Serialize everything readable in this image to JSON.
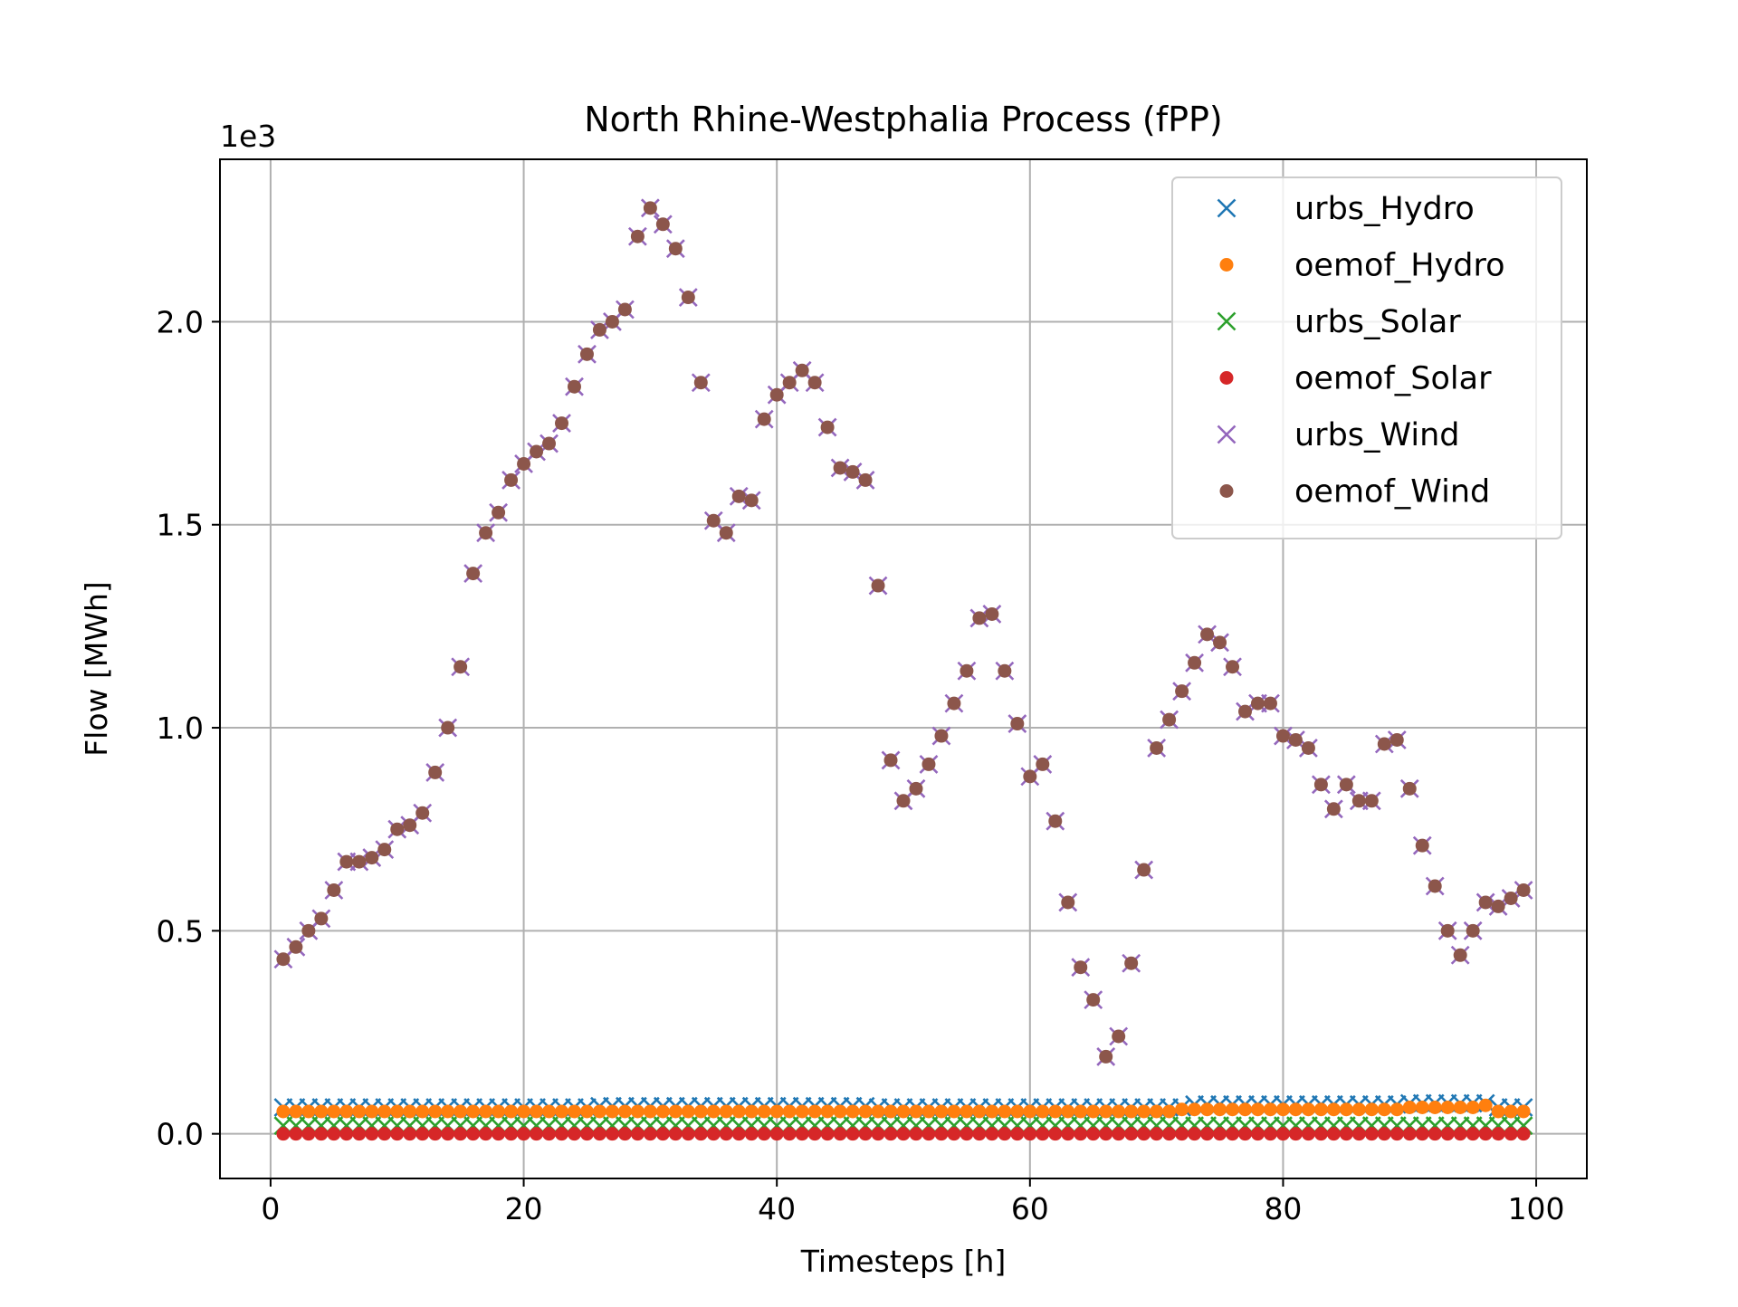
{
  "chart_data": {
    "type": "scatter",
    "title": "North Rhine-Westphalia Process (fPP)",
    "xlabel": "Timesteps [h]",
    "ylabel": "Flow [MWh]",
    "y_offset_label": "1e3",
    "xlim": [
      -4,
      104
    ],
    "ylim": [
      -0.11,
      2.4
    ],
    "x_ticks": [
      0,
      20,
      40,
      60,
      80,
      100
    ],
    "x_tick_labels": [
      "0",
      "20",
      "40",
      "60",
      "80",
      "100"
    ],
    "y_ticks": [
      0.0,
      0.5,
      1.0,
      1.5,
      2.0
    ],
    "y_tick_labels": [
      "0.0",
      "0.5",
      "1.0",
      "1.5",
      "2.0"
    ],
    "y_scale_note": "values in units of 1e3 MWh",
    "grid": true,
    "legend_position": "upper right",
    "x": [
      1,
      2,
      3,
      4,
      5,
      6,
      7,
      8,
      9,
      10,
      11,
      12,
      13,
      14,
      15,
      16,
      17,
      18,
      19,
      20,
      21,
      22,
      23,
      24,
      25,
      26,
      27,
      28,
      29,
      30,
      31,
      32,
      33,
      34,
      35,
      36,
      37,
      38,
      39,
      40,
      41,
      42,
      43,
      44,
      45,
      46,
      47,
      48,
      49,
      50,
      51,
      52,
      53,
      54,
      55,
      56,
      57,
      58,
      59,
      60,
      61,
      62,
      63,
      64,
      65,
      66,
      67,
      68,
      69,
      70,
      71,
      72,
      73,
      74,
      75,
      76,
      77,
      78,
      79,
      80,
      81,
      82,
      83,
      84,
      85,
      86,
      87,
      88,
      89,
      90,
      91,
      92,
      93,
      94,
      95,
      96,
      97,
      98,
      99
    ],
    "series": [
      {
        "name": "urbs_Hydro",
        "marker": "x",
        "color": "#1f77b4",
        "values": [
          0.065,
          0.065,
          0.065,
          0.065,
          0.065,
          0.065,
          0.065,
          0.065,
          0.065,
          0.065,
          0.065,
          0.065,
          0.065,
          0.065,
          0.065,
          0.065,
          0.065,
          0.065,
          0.065,
          0.065,
          0.065,
          0.065,
          0.065,
          0.065,
          0.065,
          0.068,
          0.068,
          0.068,
          0.068,
          0.068,
          0.068,
          0.068,
          0.068,
          0.068,
          0.068,
          0.068,
          0.068,
          0.068,
          0.068,
          0.068,
          0.068,
          0.068,
          0.068,
          0.068,
          0.068,
          0.068,
          0.068,
          0.065,
          0.065,
          0.065,
          0.065,
          0.065,
          0.065,
          0.065,
          0.065,
          0.065,
          0.065,
          0.065,
          0.065,
          0.065,
          0.065,
          0.065,
          0.065,
          0.065,
          0.065,
          0.065,
          0.065,
          0.065,
          0.065,
          0.065,
          0.065,
          0.065,
          0.072,
          0.072,
          0.072,
          0.072,
          0.072,
          0.072,
          0.072,
          0.072,
          0.072,
          0.072,
          0.072,
          0.072,
          0.072,
          0.072,
          0.072,
          0.072,
          0.072,
          0.075,
          0.075,
          0.075,
          0.075,
          0.075,
          0.075,
          0.075,
          0.065,
          0.065,
          0.065
        ]
      },
      {
        "name": "oemof_Hydro",
        "marker": "o",
        "color": "#ff7f0e",
        "values": [
          0.055,
          0.055,
          0.055,
          0.055,
          0.055,
          0.055,
          0.055,
          0.055,
          0.055,
          0.055,
          0.055,
          0.055,
          0.055,
          0.055,
          0.055,
          0.055,
          0.055,
          0.055,
          0.055,
          0.055,
          0.055,
          0.055,
          0.055,
          0.055,
          0.055,
          0.055,
          0.055,
          0.055,
          0.055,
          0.055,
          0.055,
          0.055,
          0.055,
          0.055,
          0.055,
          0.055,
          0.055,
          0.055,
          0.055,
          0.055,
          0.055,
          0.055,
          0.055,
          0.055,
          0.055,
          0.055,
          0.055,
          0.055,
          0.055,
          0.055,
          0.055,
          0.055,
          0.055,
          0.055,
          0.055,
          0.055,
          0.055,
          0.055,
          0.055,
          0.055,
          0.055,
          0.055,
          0.055,
          0.055,
          0.055,
          0.055,
          0.055,
          0.055,
          0.055,
          0.055,
          0.055,
          0.06,
          0.06,
          0.06,
          0.06,
          0.06,
          0.06,
          0.06,
          0.06,
          0.06,
          0.06,
          0.06,
          0.06,
          0.06,
          0.06,
          0.06,
          0.06,
          0.06,
          0.06,
          0.065,
          0.065,
          0.065,
          0.065,
          0.065,
          0.065,
          0.07,
          0.055,
          0.055,
          0.055
        ]
      },
      {
        "name": "urbs_Solar",
        "marker": "x",
        "color": "#2ca02c",
        "values": [
          0.02,
          0.02,
          0.02,
          0.02,
          0.02,
          0.02,
          0.02,
          0.02,
          0.02,
          0.02,
          0.02,
          0.02,
          0.02,
          0.02,
          0.02,
          0.02,
          0.02,
          0.02,
          0.02,
          0.02,
          0.02,
          0.02,
          0.02,
          0.02,
          0.02,
          0.02,
          0.02,
          0.02,
          0.02,
          0.02,
          0.02,
          0.02,
          0.02,
          0.02,
          0.02,
          0.02,
          0.02,
          0.02,
          0.02,
          0.02,
          0.02,
          0.02,
          0.02,
          0.02,
          0.02,
          0.02,
          0.02,
          0.02,
          0.02,
          0.02,
          0.02,
          0.02,
          0.02,
          0.02,
          0.02,
          0.02,
          0.02,
          0.02,
          0.02,
          0.02,
          0.02,
          0.02,
          0.02,
          0.02,
          0.02,
          0.02,
          0.02,
          0.02,
          0.02,
          0.02,
          0.02,
          0.02,
          0.02,
          0.02,
          0.02,
          0.02,
          0.02,
          0.02,
          0.02,
          0.02,
          0.02,
          0.02,
          0.02,
          0.02,
          0.02,
          0.02,
          0.02,
          0.02,
          0.02,
          0.02,
          0.02,
          0.02,
          0.02,
          0.02,
          0.02,
          0.02,
          0.02,
          0.02,
          0.02
        ]
      },
      {
        "name": "oemof_Solar",
        "marker": "o",
        "color": "#d62728",
        "values": [
          0.0,
          0.0,
          0.0,
          0.0,
          0.0,
          0.0,
          0.0,
          0.0,
          0.0,
          0.0,
          0.0,
          0.0,
          0.0,
          0.0,
          0.0,
          0.0,
          0.0,
          0.0,
          0.0,
          0.0,
          0.0,
          0.0,
          0.0,
          0.0,
          0.0,
          0.0,
          0.0,
          0.0,
          0.0,
          0.0,
          0.0,
          0.0,
          0.0,
          0.0,
          0.0,
          0.0,
          0.0,
          0.0,
          0.0,
          0.0,
          0.0,
          0.0,
          0.0,
          0.0,
          0.0,
          0.0,
          0.0,
          0.0,
          0.0,
          0.0,
          0.0,
          0.0,
          0.0,
          0.0,
          0.0,
          0.0,
          0.0,
          0.0,
          0.0,
          0.0,
          0.0,
          0.0,
          0.0,
          0.0,
          0.0,
          0.0,
          0.0,
          0.0,
          0.0,
          0.0,
          0.0,
          0.0,
          0.0,
          0.0,
          0.0,
          0.0,
          0.0,
          0.0,
          0.0,
          0.0,
          0.0,
          0.0,
          0.0,
          0.0,
          0.0,
          0.0,
          0.0,
          0.0,
          0.0,
          0.0,
          0.0,
          0.0,
          0.0,
          0.0,
          0.0,
          0.0,
          0.0,
          0.0,
          0.0
        ]
      },
      {
        "name": "urbs_Wind",
        "marker": "x",
        "color": "#9467bd",
        "values": [
          0.43,
          0.46,
          0.5,
          0.53,
          0.6,
          0.67,
          0.67,
          0.68,
          0.7,
          0.75,
          0.76,
          0.79,
          0.89,
          1.0,
          1.15,
          1.38,
          1.48,
          1.53,
          1.61,
          1.65,
          1.68,
          1.7,
          1.75,
          1.84,
          1.92,
          1.98,
          2.0,
          2.03,
          2.21,
          2.28,
          2.24,
          2.18,
          2.06,
          1.85,
          1.51,
          1.48,
          1.57,
          1.56,
          1.76,
          1.82,
          1.85,
          1.88,
          1.85,
          1.74,
          1.64,
          1.63,
          1.61,
          1.35,
          0.92,
          0.82,
          0.85,
          0.91,
          0.98,
          1.06,
          1.14,
          1.27,
          1.28,
          1.14,
          1.01,
          0.88,
          0.91,
          0.77,
          0.57,
          0.41,
          0.33,
          0.19,
          0.24,
          0.42,
          0.65,
          0.95,
          1.02,
          1.09,
          1.16,
          1.23,
          1.21,
          1.15,
          1.04,
          1.06,
          1.06,
          0.98,
          0.97,
          0.95,
          0.86,
          0.8,
          0.86,
          0.82,
          0.82,
          0.96,
          0.97,
          0.85,
          0.71,
          0.61,
          0.5,
          0.44,
          0.5,
          0.57,
          0.56,
          0.58,
          0.6
        ]
      },
      {
        "name": "oemof_Wind",
        "marker": "o",
        "color": "#8c564b",
        "values": [
          0.43,
          0.46,
          0.5,
          0.53,
          0.6,
          0.67,
          0.67,
          0.68,
          0.7,
          0.75,
          0.76,
          0.79,
          0.89,
          1.0,
          1.15,
          1.38,
          1.48,
          1.53,
          1.61,
          1.65,
          1.68,
          1.7,
          1.75,
          1.84,
          1.92,
          1.98,
          2.0,
          2.03,
          2.21,
          2.28,
          2.24,
          2.18,
          2.06,
          1.85,
          1.51,
          1.48,
          1.57,
          1.56,
          1.76,
          1.82,
          1.85,
          1.88,
          1.85,
          1.74,
          1.64,
          1.63,
          1.61,
          1.35,
          0.92,
          0.82,
          0.85,
          0.91,
          0.98,
          1.06,
          1.14,
          1.27,
          1.28,
          1.14,
          1.01,
          0.88,
          0.91,
          0.77,
          0.57,
          0.41,
          0.33,
          0.19,
          0.24,
          0.42,
          0.65,
          0.95,
          1.02,
          1.09,
          1.16,
          1.23,
          1.21,
          1.15,
          1.04,
          1.06,
          1.06,
          0.98,
          0.97,
          0.95,
          0.86,
          0.8,
          0.86,
          0.82,
          0.82,
          0.96,
          0.97,
          0.85,
          0.71,
          0.61,
          0.5,
          0.44,
          0.5,
          0.57,
          0.56,
          0.58,
          0.6
        ]
      }
    ]
  }
}
